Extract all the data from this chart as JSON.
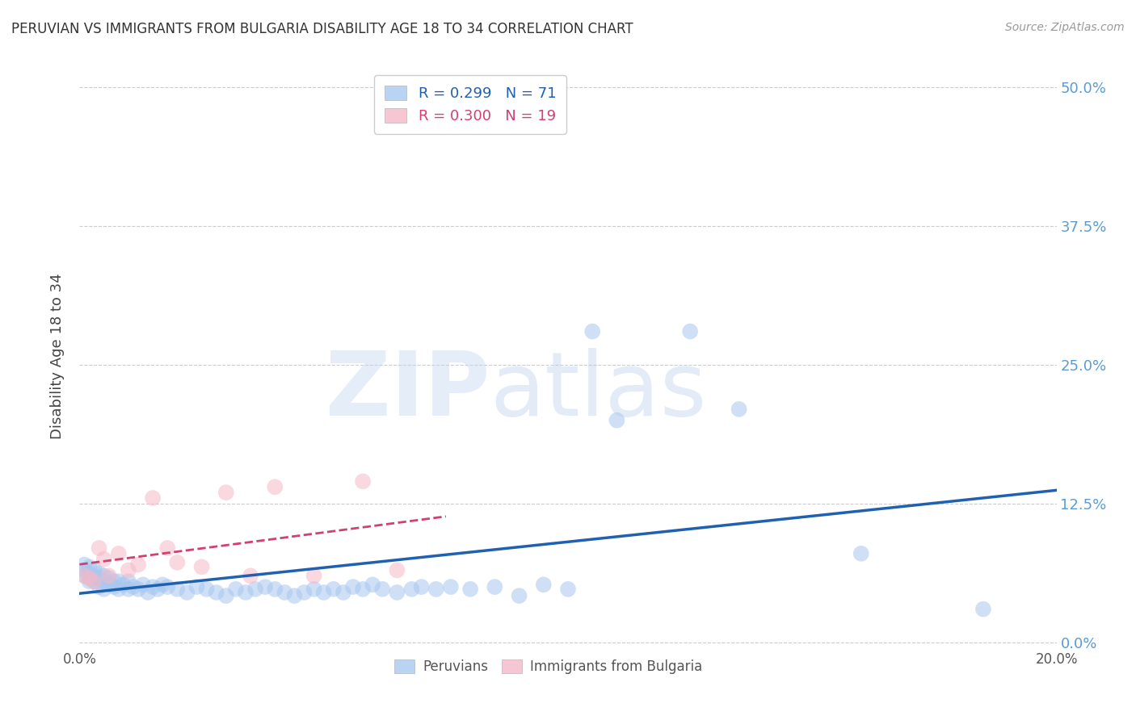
{
  "title": "PERUVIAN VS IMMIGRANTS FROM BULGARIA DISABILITY AGE 18 TO 34 CORRELATION CHART",
  "source": "Source: ZipAtlas.com",
  "ylabel": "Disability Age 18 to 34",
  "xlim": [
    0.0,
    0.2
  ],
  "ylim": [
    -0.005,
    0.52
  ],
  "yticks": [
    0.0,
    0.125,
    0.25,
    0.375,
    0.5
  ],
  "ytick_labels": [
    "0.0%",
    "12.5%",
    "25.0%",
    "37.5%",
    "50.0%"
  ],
  "xticks": [
    0.0,
    0.05,
    0.1,
    0.15,
    0.2
  ],
  "xtick_labels": [
    "0.0%",
    "",
    "",
    "",
    "20.0%"
  ],
  "blue_R": 0.299,
  "blue_N": 71,
  "pink_R": 0.3,
  "pink_N": 19,
  "blue_color": "#a8c8f0",
  "pink_color": "#f5b8c8",
  "trend_blue": "#2060b0",
  "trend_pink": "#d04070",
  "background_color": "#ffffff",
  "grid_color": "#cccccc",
  "watermark_zip": "ZIP",
  "watermark_atlas": "atlas",
  "blue_scatter_x": [
    0.001,
    0.001,
    0.001,
    0.002,
    0.002,
    0.002,
    0.002,
    0.003,
    0.003,
    0.003,
    0.004,
    0.004,
    0.004,
    0.005,
    0.005,
    0.005,
    0.006,
    0.006,
    0.007,
    0.007,
    0.008,
    0.008,
    0.009,
    0.01,
    0.01,
    0.011,
    0.012,
    0.013,
    0.014,
    0.015,
    0.016,
    0.017,
    0.018,
    0.02,
    0.022,
    0.024,
    0.026,
    0.028,
    0.03,
    0.032,
    0.034,
    0.036,
    0.038,
    0.04,
    0.042,
    0.044,
    0.046,
    0.048,
    0.05,
    0.052,
    0.054,
    0.056,
    0.058,
    0.06,
    0.062,
    0.065,
    0.068,
    0.07,
    0.073,
    0.076,
    0.08,
    0.085,
    0.09,
    0.095,
    0.1,
    0.105,
    0.11,
    0.125,
    0.135,
    0.16,
    0.185
  ],
  "blue_scatter_y": [
    0.06,
    0.065,
    0.07,
    0.055,
    0.062,
    0.068,
    0.058,
    0.055,
    0.06,
    0.065,
    0.05,
    0.058,
    0.062,
    0.048,
    0.055,
    0.06,
    0.052,
    0.058,
    0.05,
    0.055,
    0.048,
    0.055,
    0.052,
    0.048,
    0.055,
    0.05,
    0.048,
    0.052,
    0.045,
    0.05,
    0.048,
    0.052,
    0.05,
    0.048,
    0.045,
    0.05,
    0.048,
    0.045,
    0.042,
    0.048,
    0.045,
    0.048,
    0.05,
    0.048,
    0.045,
    0.042,
    0.045,
    0.048,
    0.045,
    0.048,
    0.045,
    0.05,
    0.048,
    0.052,
    0.048,
    0.045,
    0.048,
    0.05,
    0.048,
    0.05,
    0.048,
    0.05,
    0.042,
    0.052,
    0.048,
    0.28,
    0.2,
    0.28,
    0.21,
    0.08,
    0.03
  ],
  "pink_scatter_x": [
    0.001,
    0.002,
    0.003,
    0.004,
    0.005,
    0.006,
    0.008,
    0.01,
    0.012,
    0.015,
    0.018,
    0.02,
    0.025,
    0.03,
    0.035,
    0.04,
    0.048,
    0.058,
    0.065
  ],
  "pink_scatter_y": [
    0.06,
    0.058,
    0.055,
    0.085,
    0.075,
    0.06,
    0.08,
    0.065,
    0.07,
    0.13,
    0.085,
    0.072,
    0.068,
    0.135,
    0.06,
    0.14,
    0.06,
    0.145,
    0.065
  ]
}
